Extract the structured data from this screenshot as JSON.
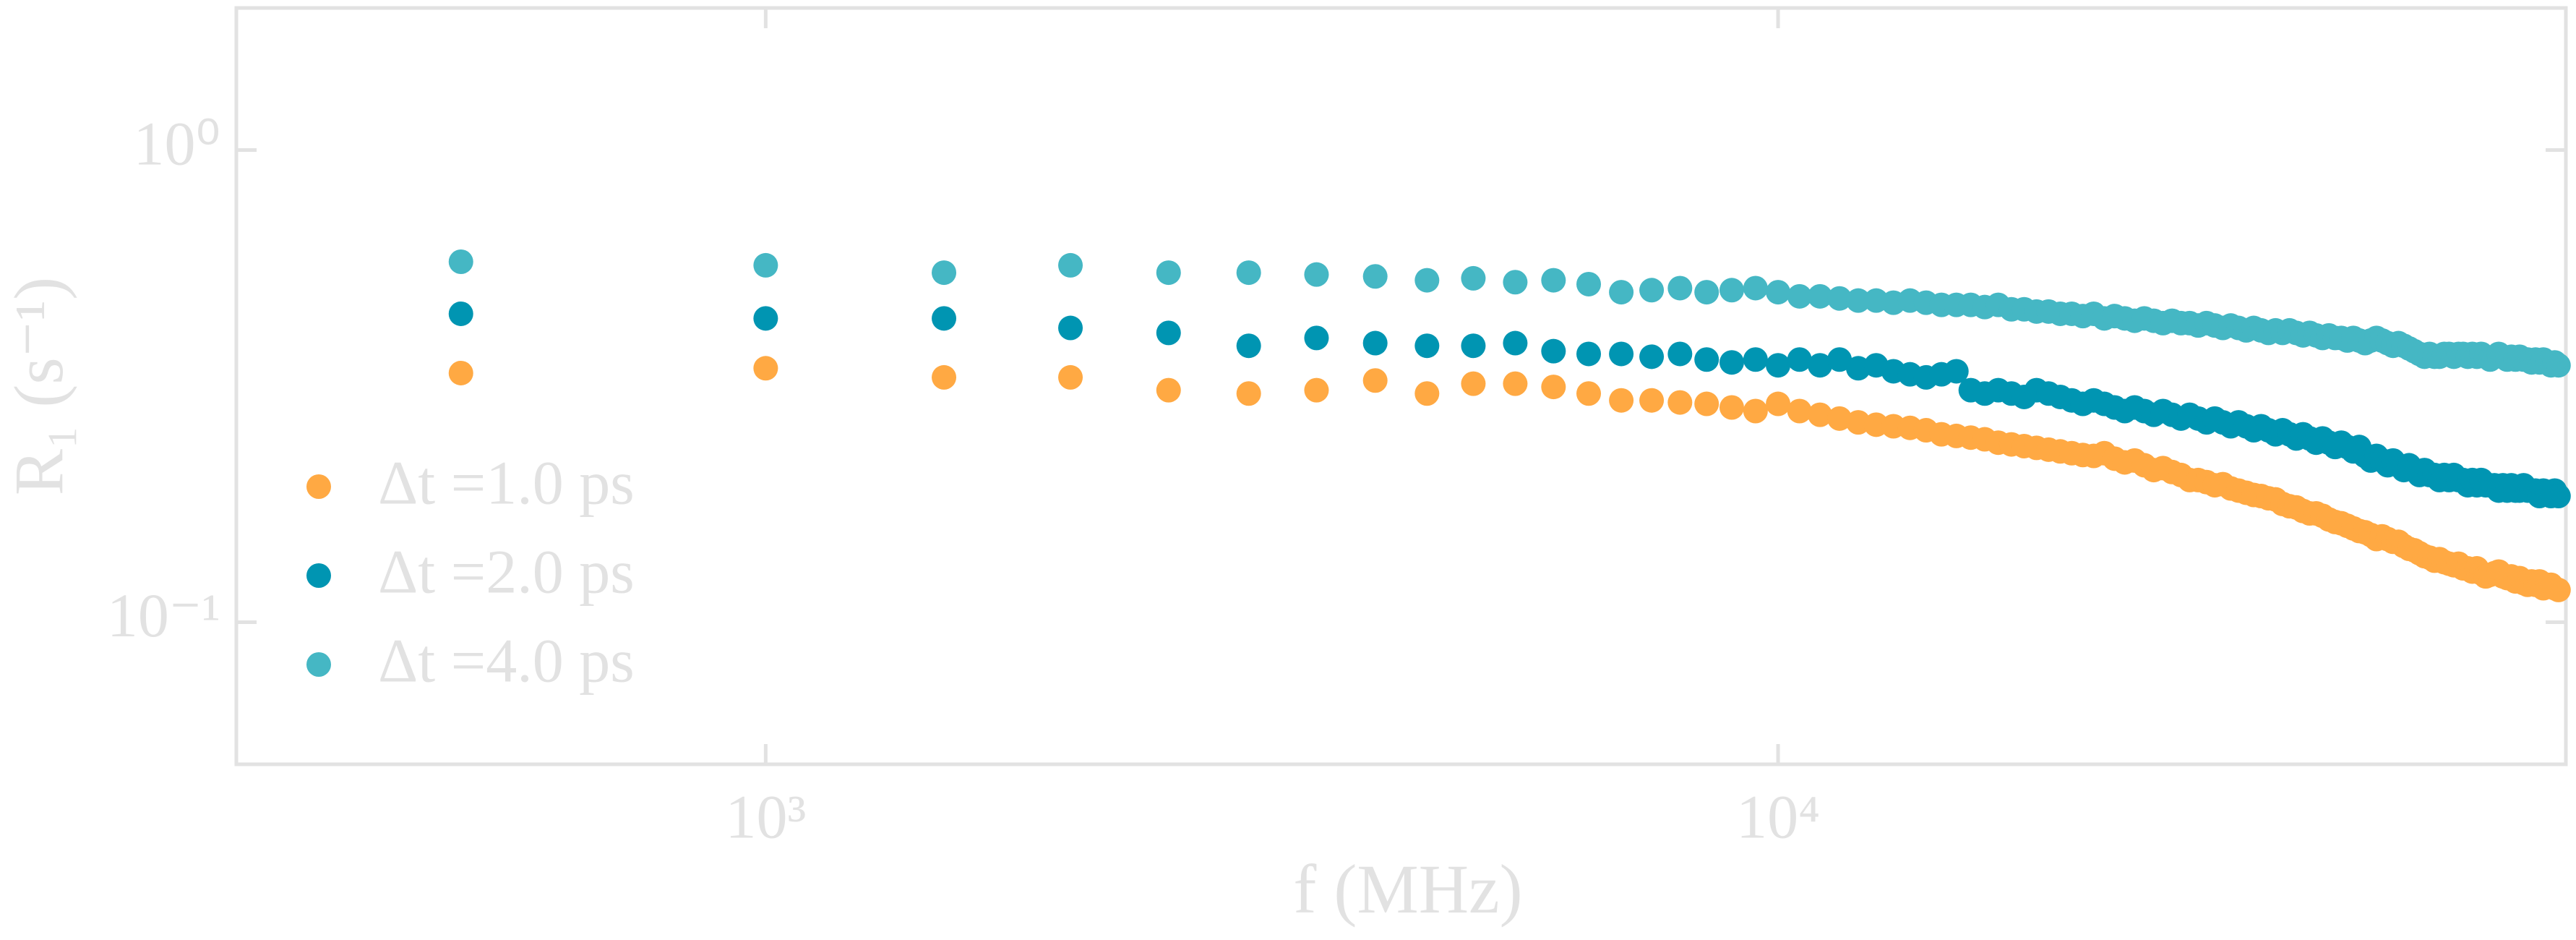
{
  "chart_data": {
    "type": "scatter",
    "xlabel": "f (MHz)",
    "ylabel": "R₁ (s⁻¹)",
    "xscale": "log",
    "yscale": "log",
    "xlim": [
      300,
      60000
    ],
    "ylim": [
      0.05,
      2
    ],
    "xticks": [
      {
        "value": 1000,
        "label": "10³"
      },
      {
        "value": 10000,
        "label": "10⁴"
      }
    ],
    "yticks": [
      {
        "value": 0.1,
        "label": "10⁻¹"
      },
      {
        "value": 1,
        "label": "10⁰"
      }
    ],
    "legend": "lower left",
    "x": [
      500,
      1000,
      1500,
      2000,
      2500,
      3000,
      3500,
      4000,
      4500,
      5000,
      5500,
      6000,
      6500,
      7000,
      7500,
      8000,
      8500,
      9000,
      9500,
      10000,
      10500,
      11000,
      11500,
      12000,
      12500,
      13000,
      13500,
      14000,
      14500,
      15000,
      15500,
      16000,
      16500,
      17000,
      17500,
      18000,
      18500,
      19000,
      19500,
      20000,
      20500,
      21000,
      21500,
      22000,
      22500,
      23000,
      23500,
      24000,
      24500,
      25000,
      25500,
      26000,
      26500,
      27000,
      27500,
      28000,
      28500,
      29000,
      29500,
      30000,
      30500,
      31000,
      31500,
      32000,
      32500,
      33000,
      33500,
      34000,
      34500,
      35000,
      35500,
      36000,
      36500,
      37000,
      37500,
      38000,
      38500,
      39000,
      39500,
      40000,
      40500,
      41000,
      41500,
      42000,
      42500,
      43000,
      43500,
      44000,
      44500,
      45000,
      45500,
      46000,
      46500,
      47000,
      47500,
      48000,
      48500,
      49000,
      49500,
      50000,
      50500,
      51000,
      51500,
      52000,
      52500,
      53000,
      53500,
      54000,
      54500,
      55000,
      55500,
      56000,
      56500,
      57000,
      57500,
      58000,
      58500,
      59000
    ],
    "series": [
      {
        "name": "Δt =1.0 ps",
        "color": "#ffa943",
        "values": [
          0.337,
          0.345,
          0.33,
          0.33,
          0.31,
          0.305,
          0.31,
          0.325,
          0.305,
          0.32,
          0.32,
          0.315,
          0.305,
          0.295,
          0.295,
          0.292,
          0.29,
          0.285,
          0.28,
          0.29,
          0.28,
          0.275,
          0.27,
          0.265,
          0.262,
          0.26,
          0.258,
          0.255,
          0.25,
          0.248,
          0.246,
          0.244,
          0.24,
          0.238,
          0.236,
          0.234,
          0.232,
          0.23,
          0.228,
          0.226,
          0.225,
          0.228,
          0.222,
          0.218,
          0.22,
          0.215,
          0.21,
          0.212,
          0.208,
          0.205,
          0.2,
          0.2,
          0.198,
          0.195,
          0.196,
          0.192,
          0.19,
          0.188,
          0.186,
          0.185,
          0.183,
          0.182,
          0.178,
          0.176,
          0.175,
          0.172,
          0.17,
          0.17,
          0.168,
          0.165,
          0.163,
          0.162,
          0.16,
          0.158,
          0.156,
          0.155,
          0.153,
          0.15,
          0.152,
          0.15,
          0.148,
          0.148,
          0.145,
          0.143,
          0.142,
          0.14,
          0.138,
          0.137,
          0.135,
          0.136,
          0.134,
          0.133,
          0.132,
          0.133,
          0.13,
          0.13,
          0.128,
          0.13,
          0.127,
          0.125,
          0.126,
          0.127,
          0.128,
          0.125,
          0.124,
          0.125,
          0.122,
          0.124,
          0.121,
          0.12,
          0.122,
          0.12,
          0.122,
          0.118,
          0.12,
          0.12,
          0.118,
          0.117
        ]
      },
      {
        "name": "Δt =2.0 ps",
        "color": "#0095b2",
        "values": [
          0.45,
          0.44,
          0.44,
          0.42,
          0.41,
          0.385,
          0.4,
          0.39,
          0.385,
          0.385,
          0.39,
          0.375,
          0.37,
          0.37,
          0.365,
          0.37,
          0.36,
          0.355,
          0.36,
          0.35,
          0.36,
          0.35,
          0.36,
          0.345,
          0.35,
          0.34,
          0.335,
          0.33,
          0.335,
          0.34,
          0.31,
          0.305,
          0.31,
          0.305,
          0.3,
          0.31,
          0.305,
          0.3,
          0.295,
          0.29,
          0.295,
          0.29,
          0.285,
          0.28,
          0.285,
          0.28,
          0.275,
          0.28,
          0.275,
          0.27,
          0.275,
          0.27,
          0.265,
          0.27,
          0.265,
          0.26,
          0.265,
          0.26,
          0.255,
          0.26,
          0.255,
          0.25,
          0.255,
          0.25,
          0.245,
          0.25,
          0.245,
          0.24,
          0.245,
          0.24,
          0.235,
          0.24,
          0.235,
          0.23,
          0.235,
          0.225,
          0.22,
          0.225,
          0.22,
          0.215,
          0.22,
          0.215,
          0.21,
          0.215,
          0.21,
          0.205,
          0.21,
          0.205,
          0.205,
          0.2,
          0.205,
          0.2,
          0.205,
          0.2,
          0.2,
          0.195,
          0.2,
          0.195,
          0.2,
          0.195,
          0.195,
          0.195,
          0.19,
          0.195,
          0.19,
          0.195,
          0.19,
          0.19,
          0.195,
          0.19,
          0.19,
          0.19,
          0.185,
          0.19,
          0.188,
          0.185,
          0.19,
          0.185
        ]
      },
      {
        "name": "Δt =4.0 ps",
        "color": "#45b7c4",
        "values": [
          0.58,
          0.57,
          0.55,
          0.57,
          0.55,
          0.55,
          0.545,
          0.54,
          0.53,
          0.535,
          0.525,
          0.53,
          0.52,
          0.5,
          0.505,
          0.51,
          0.5,
          0.505,
          0.51,
          0.5,
          0.49,
          0.49,
          0.485,
          0.48,
          0.48,
          0.475,
          0.48,
          0.475,
          0.47,
          0.47,
          0.47,
          0.465,
          0.47,
          0.46,
          0.46,
          0.455,
          0.455,
          0.45,
          0.45,
          0.445,
          0.45,
          0.44,
          0.445,
          0.44,
          0.435,
          0.44,
          0.435,
          0.43,
          0.435,
          0.43,
          0.43,
          0.425,
          0.43,
          0.425,
          0.42,
          0.425,
          0.42,
          0.415,
          0.42,
          0.415,
          0.41,
          0.415,
          0.41,
          0.415,
          0.41,
          0.405,
          0.41,
          0.405,
          0.4,
          0.405,
          0.4,
          0.4,
          0.395,
          0.4,
          0.395,
          0.39,
          0.395,
          0.4,
          0.395,
          0.39,
          0.385,
          0.39,
          0.385,
          0.38,
          0.375,
          0.37,
          0.365,
          0.37,
          0.365,
          0.365,
          0.37,
          0.37,
          0.365,
          0.37,
          0.37,
          0.365,
          0.37,
          0.365,
          0.37,
          0.365,
          0.36,
          0.365,
          0.37,
          0.365,
          0.36,
          0.365,
          0.36,
          0.365,
          0.36,
          0.36,
          0.355,
          0.36,
          0.355,
          0.36,
          0.355,
          0.35,
          0.355,
          0.35
        ]
      }
    ]
  }
}
